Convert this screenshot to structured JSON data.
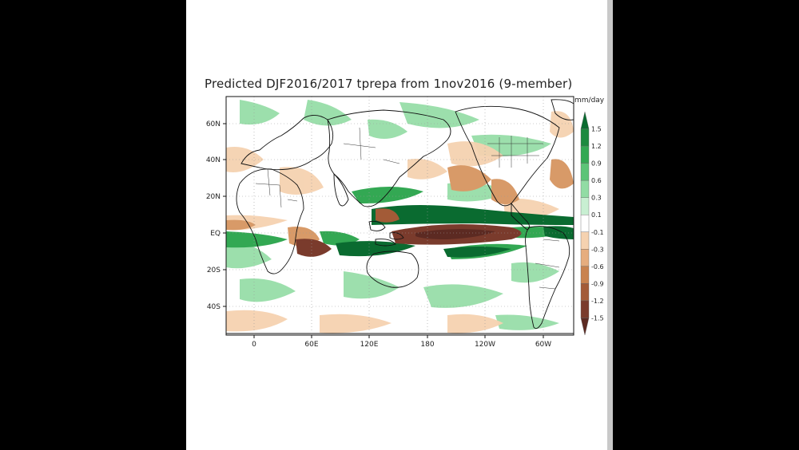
{
  "title": "Predicted DJF2016/2017 tprepa from 1nov2016 (9-member)",
  "units": "mm/day",
  "map": {
    "lat_labels": [
      "60N",
      "40N",
      "20N",
      "EQ",
      "20S",
      "40S"
    ],
    "lat_values": [
      60,
      40,
      20,
      0,
      -20,
      -40
    ],
    "lon_labels": [
      "0",
      "60E",
      "120E",
      "180",
      "120W",
      "60W"
    ],
    "lon_values": [
      0,
      60,
      120,
      180,
      240,
      300
    ],
    "lon_range": [
      -20,
      320
    ],
    "lat_range": [
      -55,
      75
    ]
  },
  "colorbar": {
    "labels": [
      "1.5",
      "1.2",
      "0.9",
      "0.6",
      "0.3",
      "0.1",
      "-0.1",
      "-0.3",
      "-0.6",
      "-0.9",
      "-1.2",
      "-1.5"
    ],
    "colors": [
      "#0a6b30",
      "#1d8a3f",
      "#33a853",
      "#5cc477",
      "#92dca4",
      "#c8efd2",
      "#ffffff",
      "#f5d2b0",
      "#e6ad7e",
      "#c9834f",
      "#a35b37",
      "#7a3b2c",
      "#5c2a22"
    ]
  },
  "palette": {
    "wet_strong": "#0a6b30",
    "wet_mid": "#33a853",
    "wet_light": "#92dca4",
    "dry_light": "#f5d2b0",
    "dry_mid": "#c9834f",
    "dry_strong": "#6e3a2c",
    "coast": "#111111"
  }
}
